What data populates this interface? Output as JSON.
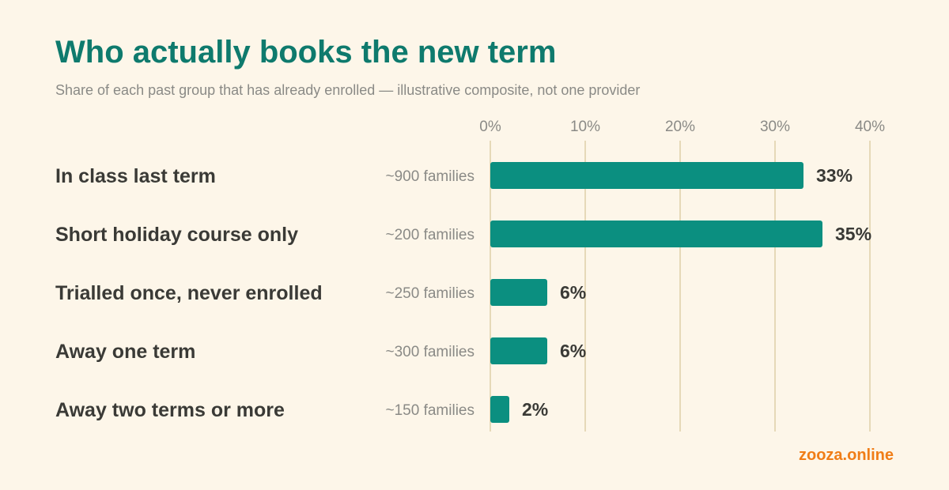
{
  "title": "Who actually books the new term",
  "subtitle": "Share of each past group that has already enrolled — illustrative composite, not one provider",
  "brand": "zooza.online",
  "colors": {
    "bar": "#0b8f80",
    "gridline": "#e6d9b8",
    "title": "#0e7a6d",
    "brand": "#f07d17",
    "background": "#fdf6e9"
  },
  "chart_data": {
    "type": "bar",
    "orientation": "horizontal",
    "categories": [
      "In class last term",
      "Short holiday course only",
      "Trialled once, never enrolled",
      "Away one term",
      "Away two terms or more"
    ],
    "group_sizes": [
      "~900 families",
      "~200 families",
      "~250 families",
      "~300 families",
      "~150 families"
    ],
    "values": [
      33,
      35,
      6,
      6,
      2
    ],
    "value_labels": [
      "33%",
      "35%",
      "6%",
      "6%",
      "2%"
    ],
    "xlim": [
      0,
      40
    ],
    "ticks": [
      0,
      10,
      20,
      30,
      40
    ],
    "tick_labels": [
      "0%",
      "10%",
      "20%",
      "30%",
      "40%"
    ],
    "tick_position": "top",
    "grid": true,
    "legend": false
  }
}
